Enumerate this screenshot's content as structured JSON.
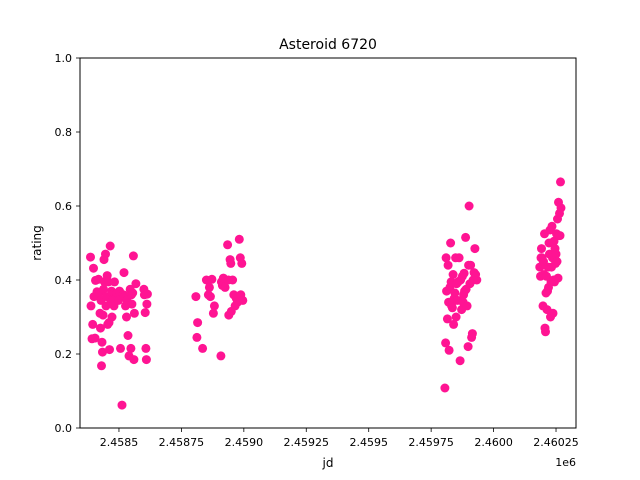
{
  "chart_data": {
    "type": "scatter",
    "title": "Asteroid 6720",
    "xlabel": "jd",
    "ylabel": "rating",
    "x_offset_label": "1e6",
    "xlim": [
      2458344,
      2460330
    ],
    "ylim": [
      0.0,
      1.0
    ],
    "grid": false,
    "marker_color": "#ff1493",
    "x_ticks": [
      2458500,
      2458750,
      2459000,
      2459250,
      2459500,
      2459750,
      2460000,
      2460250
    ],
    "x_tick_labels": [
      "2.4585",
      "2.45875",
      "2.4590",
      "2.45925",
      "2.4595",
      "2.45975",
      "2.4600",
      "2.46025"
    ],
    "y_ticks": [
      0.0,
      0.2,
      0.4,
      0.6,
      0.8,
      1.0
    ],
    "y_tick_labels": [
      "0.0",
      "0.2",
      "0.4",
      "0.6",
      "0.8",
      "1.0"
    ],
    "points": [
      [
        2458386,
        0.462
      ],
      [
        2458388,
        0.33
      ],
      [
        2458392,
        0.241
      ],
      [
        2458395,
        0.28
      ],
      [
        2458398,
        0.432
      ],
      [
        2458400,
        0.355
      ],
      [
        2458404,
        0.243
      ],
      [
        2458406,
        0.399
      ],
      [
        2458412,
        0.368
      ],
      [
        2458418,
        0.402
      ],
      [
        2458420,
        0.365
      ],
      [
        2458424,
        0.31
      ],
      [
        2458426,
        0.27
      ],
      [
        2458428,
        0.345
      ],
      [
        2458430,
        0.168
      ],
      [
        2458432,
        0.232
      ],
      [
        2458434,
        0.205
      ],
      [
        2458436,
        0.305
      ],
      [
        2458438,
        0.375
      ],
      [
        2458440,
        0.455
      ],
      [
        2458442,
        0.395
      ],
      [
        2458446,
        0.47
      ],
      [
        2458448,
        0.33
      ],
      [
        2458450,
        0.355
      ],
      [
        2458453,
        0.412
      ],
      [
        2458455,
        0.28
      ],
      [
        2458458,
        0.395
      ],
      [
        2458460,
        0.285
      ],
      [
        2458462,
        0.212
      ],
      [
        2458465,
        0.492
      ],
      [
        2458468,
        0.34
      ],
      [
        2458470,
        0.37
      ],
      [
        2458472,
        0.3
      ],
      [
        2458475,
        0.362
      ],
      [
        2458478,
        0.35
      ],
      [
        2458480,
        0.33
      ],
      [
        2458482,
        0.395
      ],
      [
        2458485,
        0.36
      ],
      [
        2458488,
        0.352
      ],
      [
        2458492,
        0.365
      ],
      [
        2458498,
        0.345
      ],
      [
        2458502,
        0.37
      ],
      [
        2458506,
        0.215
      ],
      [
        2458512,
        0.062
      ],
      [
        2458518,
        0.36
      ],
      [
        2458520,
        0.42
      ],
      [
        2458524,
        0.355
      ],
      [
        2458526,
        0.33
      ],
      [
        2458530,
        0.3
      ],
      [
        2458532,
        0.345
      ],
      [
        2458536,
        0.25
      ],
      [
        2458540,
        0.195
      ],
      [
        2458545,
        0.375
      ],
      [
        2458548,
        0.215
      ],
      [
        2458550,
        0.36
      ],
      [
        2458552,
        0.335
      ],
      [
        2458555,
        0.365
      ],
      [
        2458558,
        0.465
      ],
      [
        2458560,
        0.185
      ],
      [
        2458562,
        0.31
      ],
      [
        2458568,
        0.39
      ],
      [
        2458600,
        0.375
      ],
      [
        2458602,
        0.36
      ],
      [
        2458605,
        0.312
      ],
      [
        2458608,
        0.215
      ],
      [
        2458610,
        0.185
      ],
      [
        2458612,
        0.335
      ],
      [
        2458614,
        0.362
      ],
      [
        2458808,
        0.355
      ],
      [
        2458812,
        0.245
      ],
      [
        2458815,
        0.285
      ],
      [
        2458835,
        0.215
      ],
      [
        2458850,
        0.4
      ],
      [
        2458858,
        0.36
      ],
      [
        2458862,
        0.38
      ],
      [
        2458866,
        0.355
      ],
      [
        2458872,
        0.402
      ],
      [
        2458878,
        0.31
      ],
      [
        2458882,
        0.33
      ],
      [
        2458908,
        0.195
      ],
      [
        2458910,
        0.395
      ],
      [
        2458914,
        0.385
      ],
      [
        2458918,
        0.405
      ],
      [
        2458925,
        0.38
      ],
      [
        2458935,
        0.495
      ],
      [
        2458938,
        0.4
      ],
      [
        2458940,
        0.305
      ],
      [
        2458945,
        0.455
      ],
      [
        2458948,
        0.445
      ],
      [
        2458950,
        0.315
      ],
      [
        2458955,
        0.4
      ],
      [
        2458960,
        0.36
      ],
      [
        2458965,
        0.33
      ],
      [
        2458970,
        0.35
      ],
      [
        2458975,
        0.34
      ],
      [
        2458982,
        0.51
      ],
      [
        2458986,
        0.46
      ],
      [
        2458988,
        0.36
      ],
      [
        2458992,
        0.445
      ],
      [
        2458996,
        0.345
      ],
      [
        2459805,
        0.108
      ],
      [
        2459808,
        0.23
      ],
      [
        2459810,
        0.46
      ],
      [
        2459812,
        0.37
      ],
      [
        2459815,
        0.295
      ],
      [
        2459818,
        0.44
      ],
      [
        2459820,
        0.34
      ],
      [
        2459822,
        0.21
      ],
      [
        2459825,
        0.38
      ],
      [
        2459828,
        0.5
      ],
      [
        2459830,
        0.395
      ],
      [
        2459832,
        0.33
      ],
      [
        2459835,
        0.325
      ],
      [
        2459838,
        0.415
      ],
      [
        2459840,
        0.28
      ],
      [
        2459842,
        0.35
      ],
      [
        2459845,
        0.365
      ],
      [
        2459848,
        0.46
      ],
      [
        2459850,
        0.3
      ],
      [
        2459852,
        0.39
      ],
      [
        2459855,
        0.345
      ],
      [
        2459858,
        0.395
      ],
      [
        2459862,
        0.46
      ],
      [
        2459866,
        0.182
      ],
      [
        2459868,
        0.4
      ],
      [
        2459872,
        0.32
      ],
      [
        2459875,
        0.41
      ],
      [
        2459878,
        0.34
      ],
      [
        2459880,
        0.36
      ],
      [
        2459882,
        0.418
      ],
      [
        2459884,
        0.37
      ],
      [
        2459888,
        0.515
      ],
      [
        2459890,
        0.375
      ],
      [
        2459894,
        0.33
      ],
      [
        2459898,
        0.22
      ],
      [
        2459900,
        0.44
      ],
      [
        2459902,
        0.6
      ],
      [
        2459905,
        0.39
      ],
      [
        2459908,
        0.44
      ],
      [
        2459912,
        0.245
      ],
      [
        2459915,
        0.255
      ],
      [
        2459918,
        0.4
      ],
      [
        2459922,
        0.42
      ],
      [
        2459925,
        0.485
      ],
      [
        2459928,
        0.415
      ],
      [
        2459933,
        0.4
      ],
      [
        2460185,
        0.435
      ],
      [
        2460188,
        0.41
      ],
      [
        2460190,
        0.46
      ],
      [
        2460192,
        0.485
      ],
      [
        2460194,
        0.46
      ],
      [
        2460196,
        0.44
      ],
      [
        2460198,
        0.33
      ],
      [
        2460200,
        0.45
      ],
      [
        2460202,
        0.415
      ],
      [
        2460204,
        0.525
      ],
      [
        2460206,
        0.27
      ],
      [
        2460208,
        0.26
      ],
      [
        2460210,
        0.365
      ],
      [
        2460212,
        0.41
      ],
      [
        2460214,
        0.32
      ],
      [
        2460216,
        0.37
      ],
      [
        2460218,
        0.435
      ],
      [
        2460220,
        0.38
      ],
      [
        2460222,
        0.5
      ],
      [
        2460224,
        0.47
      ],
      [
        2460226,
        0.535
      ],
      [
        2460228,
        0.3
      ],
      [
        2460230,
        0.395
      ],
      [
        2460232,
        0.435
      ],
      [
        2460234,
        0.545
      ],
      [
        2460236,
        0.46
      ],
      [
        2460238,
        0.31
      ],
      [
        2460240,
        0.4
      ],
      [
        2460242,
        0.505
      ],
      [
        2460244,
        0.395
      ],
      [
        2460246,
        0.485
      ],
      [
        2460248,
        0.445
      ],
      [
        2460250,
        0.47
      ],
      [
        2460252,
        0.525
      ],
      [
        2460254,
        0.45
      ],
      [
        2460256,
        0.565
      ],
      [
        2460258,
        0.405
      ],
      [
        2460260,
        0.61
      ],
      [
        2460262,
        0.52
      ],
      [
        2460264,
        0.58
      ],
      [
        2460266,
        0.52
      ],
      [
        2460268,
        0.665
      ],
      [
        2460270,
        0.595
      ]
    ]
  }
}
